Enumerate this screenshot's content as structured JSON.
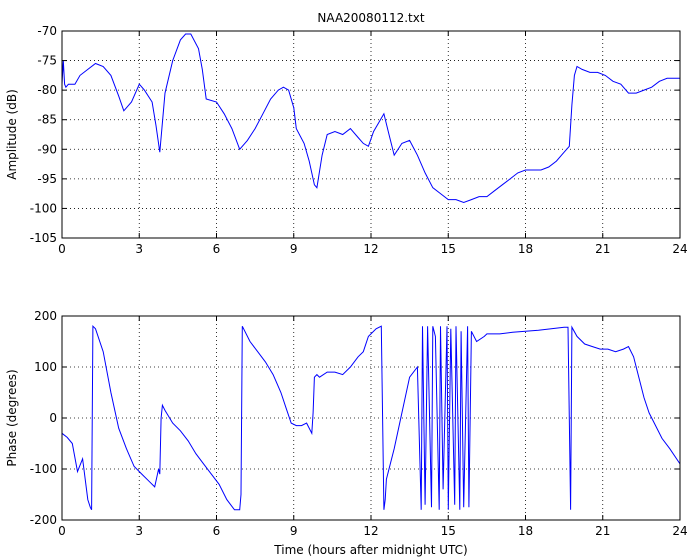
{
  "chart_data": [
    {
      "type": "line",
      "title": "NAA20080112.txt",
      "xlabel": "",
      "ylabel": "Amplitude (dB)",
      "xlim": [
        0,
        24
      ],
      "ylim": [
        -105,
        -70
      ],
      "xticks": [
        0,
        3,
        6,
        9,
        12,
        15,
        18,
        21,
        24
      ],
      "xtick_labels": [
        "0",
        "3",
        "6",
        "9",
        "12",
        "15",
        "18",
        "21",
        "24"
      ],
      "yticks": [
        -105,
        -100,
        -95,
        -90,
        -85,
        -80,
        -75,
        -70
      ],
      "ytick_labels": [
        "-105",
        "-100",
        "-95",
        "-90",
        "-85",
        "-80",
        "-75",
        "-70"
      ],
      "grid": true,
      "color": "#0000ff",
      "series": [
        {
          "x": [
            0,
            0.05,
            0.1,
            0.15,
            0.25,
            0.5,
            0.7,
            1.0,
            1.3,
            1.6,
            1.9,
            2.2,
            2.4,
            2.7,
            3.0,
            3.2,
            3.5,
            3.65,
            3.8,
            3.85,
            4.0,
            4.3,
            4.6,
            4.8,
            5.0,
            5.3,
            5.45,
            5.6,
            6.0,
            6.3,
            6.6,
            6.9,
            7.2,
            7.5,
            7.8,
            8.1,
            8.4,
            8.6,
            8.8,
            9.0,
            9.1,
            9.4,
            9.6,
            9.8,
            9.9,
            10.1,
            10.3,
            10.6,
            10.9,
            11.2,
            11.5,
            11.7,
            11.9,
            12.1,
            12.3,
            12.5,
            12.7,
            12.9,
            13.2,
            13.5,
            13.8,
            14.1,
            14.4,
            14.7,
            15.0,
            15.3,
            15.6,
            15.9,
            16.2,
            16.5,
            16.8,
            17.1,
            17.4,
            17.7,
            18.0,
            18.3,
            18.6,
            18.9,
            19.2,
            19.4,
            19.5,
            19.7,
            19.8,
            19.9,
            20.0,
            20.2,
            20.5,
            20.8,
            21.1,
            21.4,
            21.7,
            22.0,
            22.3,
            22.6,
            22.9,
            23.2,
            23.5,
            23.8,
            24.0
          ],
          "y": [
            -79,
            -75,
            -79,
            -79.5,
            -79,
            -79,
            -77.5,
            -76.5,
            -75.5,
            -76,
            -77.5,
            -81,
            -83.5,
            -82,
            -79,
            -80,
            -82,
            -86,
            -90.5,
            -88,
            -80.5,
            -75,
            -71.5,
            -70.5,
            -70.5,
            -73,
            -76.5,
            -81.5,
            -82,
            -84,
            -86.5,
            -90,
            -88.5,
            -86.5,
            -84,
            -81.5,
            -80,
            -79.5,
            -80,
            -83,
            -86.5,
            -89,
            -92,
            -96,
            -96.5,
            -91,
            -87.5,
            -87,
            -87.5,
            -86.5,
            -88,
            -89,
            -89.5,
            -87,
            -85.5,
            -84,
            -87.5,
            -91,
            -89,
            -88.5,
            -91,
            -94,
            -96.5,
            -97.5,
            -98.5,
            -98.5,
            -99,
            -98.5,
            -98,
            -98,
            -97,
            -96,
            -95,
            -94,
            -93.5,
            -93.5,
            -93.5,
            -93,
            -92,
            -91,
            -90.5,
            -89.5,
            -82.5,
            -77.5,
            -76,
            -76.5,
            -77,
            -77,
            -77.5,
            -78.5,
            -79,
            -80.5,
            -80.5,
            -80,
            -79.5,
            -78.5,
            -78,
            -78,
            -78
          ]
        }
      ]
    },
    {
      "type": "line",
      "title": "",
      "xlabel": "Time (hours after midnight UTC)",
      "ylabel": "Phase (degrees)",
      "xlim": [
        0,
        24
      ],
      "ylim": [
        -200,
        200
      ],
      "xticks": [
        0,
        3,
        6,
        9,
        12,
        15,
        18,
        21,
        24
      ],
      "xtick_labels": [
        "0",
        "3",
        "6",
        "9",
        "12",
        "15",
        "18",
        "21",
        "24"
      ],
      "yticks": [
        -200,
        -100,
        0,
        100,
        200
      ],
      "ytick_labels": [
        "-200",
        "-100",
        "0",
        "100",
        "200"
      ],
      "grid": true,
      "color": "#0000ff",
      "series": [
        {
          "x": [
            0,
            0.2,
            0.4,
            0.6,
            0.8,
            1.0,
            1.1,
            1.15,
            1.2,
            1.3,
            1.6,
            1.9,
            2.2,
            2.5,
            2.8,
            3.1,
            3.4,
            3.6,
            3.75,
            3.8,
            3.85,
            3.9,
            4.0,
            4.3,
            4.6,
            4.9,
            5.2,
            5.5,
            5.8,
            6.1,
            6.4,
            6.7,
            6.9,
            6.95,
            7.0,
            7.3,
            7.6,
            7.9,
            8.2,
            8.5,
            8.7,
            8.9,
            9.1,
            9.3,
            9.5,
            9.7,
            9.75,
            9.8,
            9.9,
            10.0,
            10.3,
            10.6,
            10.9,
            11.2,
            11.5,
            11.7,
            11.9,
            12.2,
            12.4,
            12.5,
            12.55,
            12.6,
            12.9,
            13.2,
            13.5,
            13.8,
            13.95,
            14.0,
            14.1,
            14.2,
            14.35,
            14.4,
            14.5,
            14.65,
            14.7,
            14.8,
            14.95,
            15.0,
            15.1,
            15.25,
            15.3,
            15.45,
            15.5,
            15.6,
            15.75,
            15.8,
            15.9,
            16.1,
            16.4,
            16.5,
            16.7,
            17.0,
            17.5,
            18.0,
            18.5,
            19.0,
            19.5,
            19.65,
            19.7,
            19.75,
            19.8,
            20.0,
            20.3,
            20.6,
            20.9,
            21.2,
            21.5,
            21.8,
            22.0,
            22.2,
            22.4,
            22.6,
            22.8,
            23.0,
            23.3,
            23.6,
            24.0
          ],
          "y": [
            -30,
            -38,
            -50,
            -105,
            -80,
            -160,
            -175,
            -180,
            180,
            175,
            130,
            50,
            -20,
            -60,
            -95,
            -110,
            -125,
            -135,
            -100,
            -110,
            0,
            25,
            15,
            -10,
            -25,
            -45,
            -70,
            -90,
            -110,
            -130,
            -160,
            -180,
            -180,
            -150,
            180,
            150,
            130,
            110,
            85,
            50,
            20,
            -10,
            -15,
            -15,
            -10,
            -30,
            10,
            80,
            85,
            80,
            90,
            90,
            85,
            100,
            120,
            130,
            160,
            175,
            180,
            -180,
            -160,
            -120,
            -60,
            10,
            80,
            100,
            -180,
            180,
            -170,
            180,
            -175,
            180,
            160,
            -180,
            180,
            -140,
            180,
            -180,
            175,
            -170,
            180,
            -180,
            170,
            -175,
            180,
            -175,
            170,
            150,
            160,
            165,
            165,
            165,
            168,
            170,
            172,
            175,
            178,
            178,
            0,
            -180,
            178,
            160,
            145,
            140,
            135,
            135,
            130,
            135,
            140,
            120,
            80,
            40,
            10,
            -10,
            -40,
            -60,
            -90
          ]
        }
      ]
    }
  ]
}
